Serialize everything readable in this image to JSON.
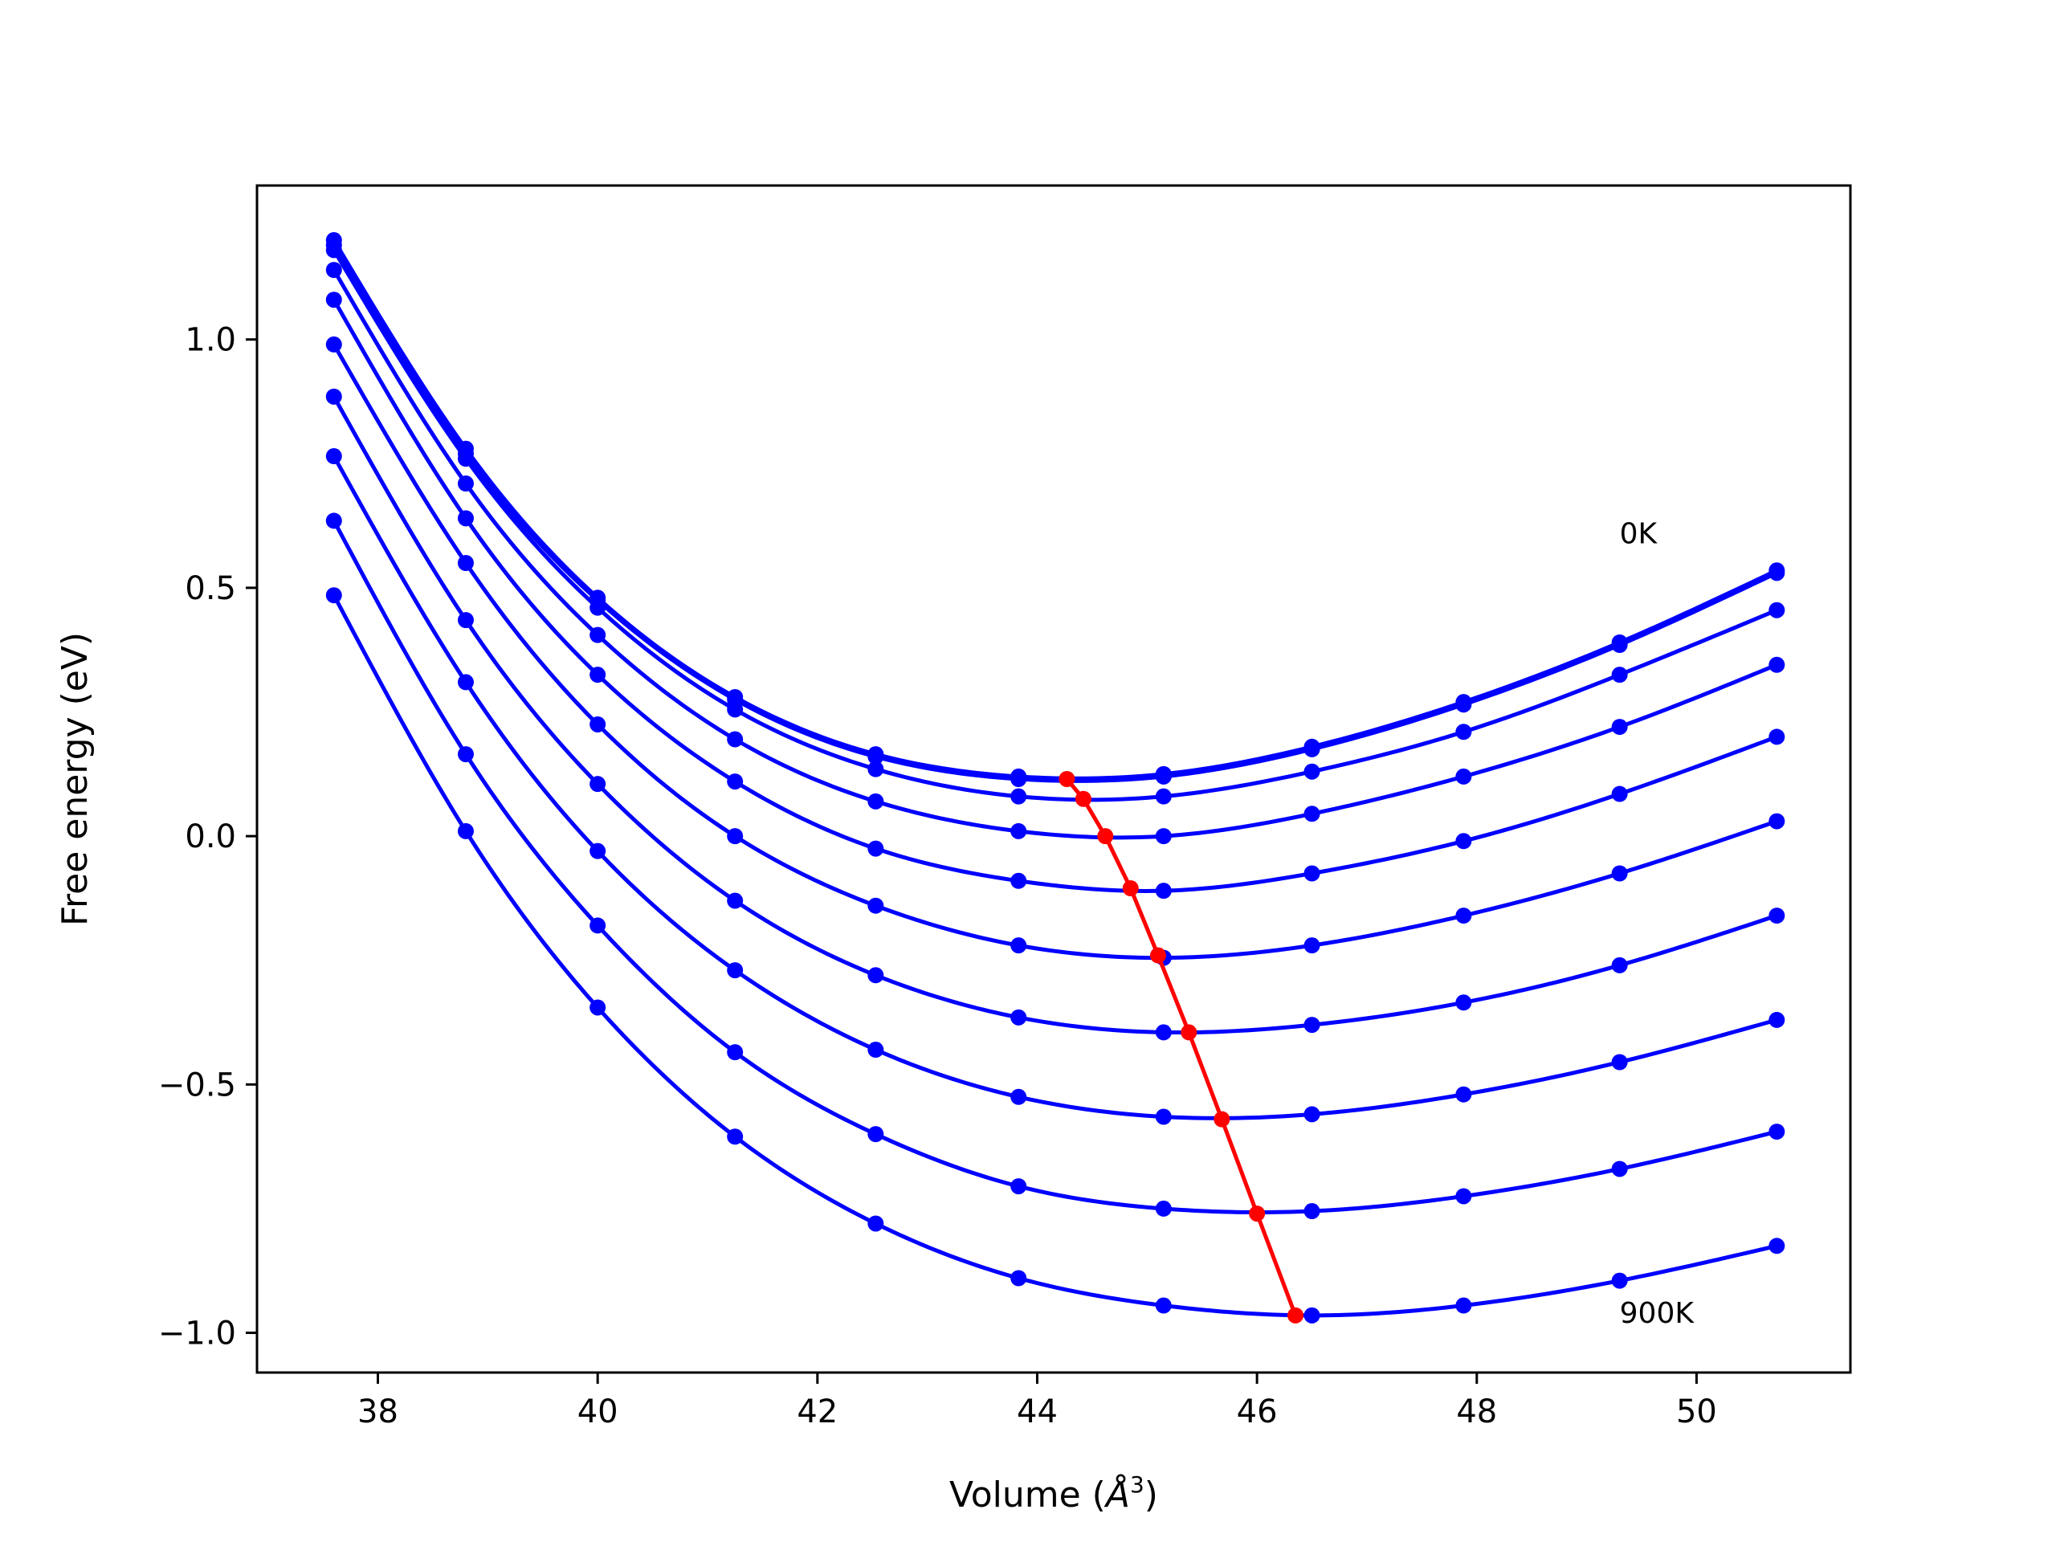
{
  "chart_data": {
    "type": "line",
    "title": "",
    "xlabel": "Volume (Å³)",
    "xlabel_main": "Volume (",
    "xlabel_unit": "Å",
    "xlabel_sup": "3",
    "xlabel_close": ")",
    "ylabel": "Free energy (eV)",
    "xlim": [
      36.9,
      51.4
    ],
    "ylim": [
      -1.08,
      1.31
    ],
    "xticks": [
      38,
      40,
      42,
      44,
      46,
      48,
      50
    ],
    "xtick_labels": [
      "38",
      "40",
      "42",
      "44",
      "46",
      "48",
      "50"
    ],
    "yticks": [
      -1.0,
      -0.5,
      0.0,
      0.5,
      1.0
    ],
    "ytick_labels": [
      "−1.0",
      "−0.5",
      "0.0",
      "0.5",
      "1.0"
    ],
    "grid": false,
    "colors": {
      "curves": "#0000ff",
      "minimum": "#ff0000"
    },
    "annotations": [
      {
        "text": "0K",
        "x": 49.3,
        "y": 0.59
      },
      {
        "text": "900K",
        "x": 49.3,
        "y": -0.98
      }
    ],
    "x": [
      37.6,
      38.8,
      40.0,
      41.25,
      42.53,
      43.83,
      45.15,
      46.5,
      47.88,
      49.3,
      50.73
    ],
    "series": [
      {
        "values": [
          1.2,
          0.78,
          0.48,
          0.28,
          0.165,
          0.12,
          0.125,
          0.18,
          0.27,
          0.39,
          0.535
        ]
      },
      {
        "values": [
          1.19,
          0.77,
          0.475,
          0.275,
          0.16,
          0.115,
          0.12,
          0.175,
          0.265,
          0.385,
          0.53
        ]
      },
      {
        "values": [
          1.18,
          0.76,
          0.46,
          0.255,
          0.135,
          0.08,
          0.08,
          0.13,
          0.21,
          0.325,
          0.455
        ]
      },
      {
        "values": [
          1.14,
          0.71,
          0.405,
          0.195,
          0.07,
          0.01,
          0.0,
          0.045,
          0.12,
          0.22,
          0.345
        ]
      },
      {
        "values": [
          1.08,
          0.64,
          0.325,
          0.11,
          -0.025,
          -0.09,
          -0.11,
          -0.075,
          -0.01,
          0.085,
          0.2
        ]
      },
      {
        "values": [
          0.99,
          0.55,
          0.225,
          0.0,
          -0.14,
          -0.22,
          -0.245,
          -0.22,
          -0.16,
          -0.075,
          0.03
        ]
      },
      {
        "values": [
          0.885,
          0.435,
          0.105,
          -0.13,
          -0.28,
          -0.365,
          -0.395,
          -0.38,
          -0.335,
          -0.26,
          -0.16
        ]
      },
      {
        "values": [
          0.765,
          0.31,
          -0.03,
          -0.27,
          -0.43,
          -0.525,
          -0.565,
          -0.56,
          -0.52,
          -0.455,
          -0.37
        ]
      },
      {
        "values": [
          0.635,
          0.165,
          -0.18,
          -0.435,
          -0.6,
          -0.705,
          -0.75,
          -0.755,
          -0.725,
          -0.67,
          -0.595
        ]
      },
      {
        "values": [
          0.485,
          0.01,
          -0.345,
          -0.605,
          -0.78,
          -0.89,
          -0.945,
          -0.965,
          -0.945,
          -0.895,
          -0.825
        ]
      }
    ],
    "minimum_locus": {
      "x": [
        44.27,
        44.42,
        44.62,
        44.85,
        45.1,
        45.38,
        45.68,
        46.0,
        46.35
      ],
      "values": [
        0.115,
        0.075,
        0.0,
        -0.105,
        -0.24,
        -0.395,
        -0.57,
        -0.76,
        -0.965
      ]
    }
  }
}
